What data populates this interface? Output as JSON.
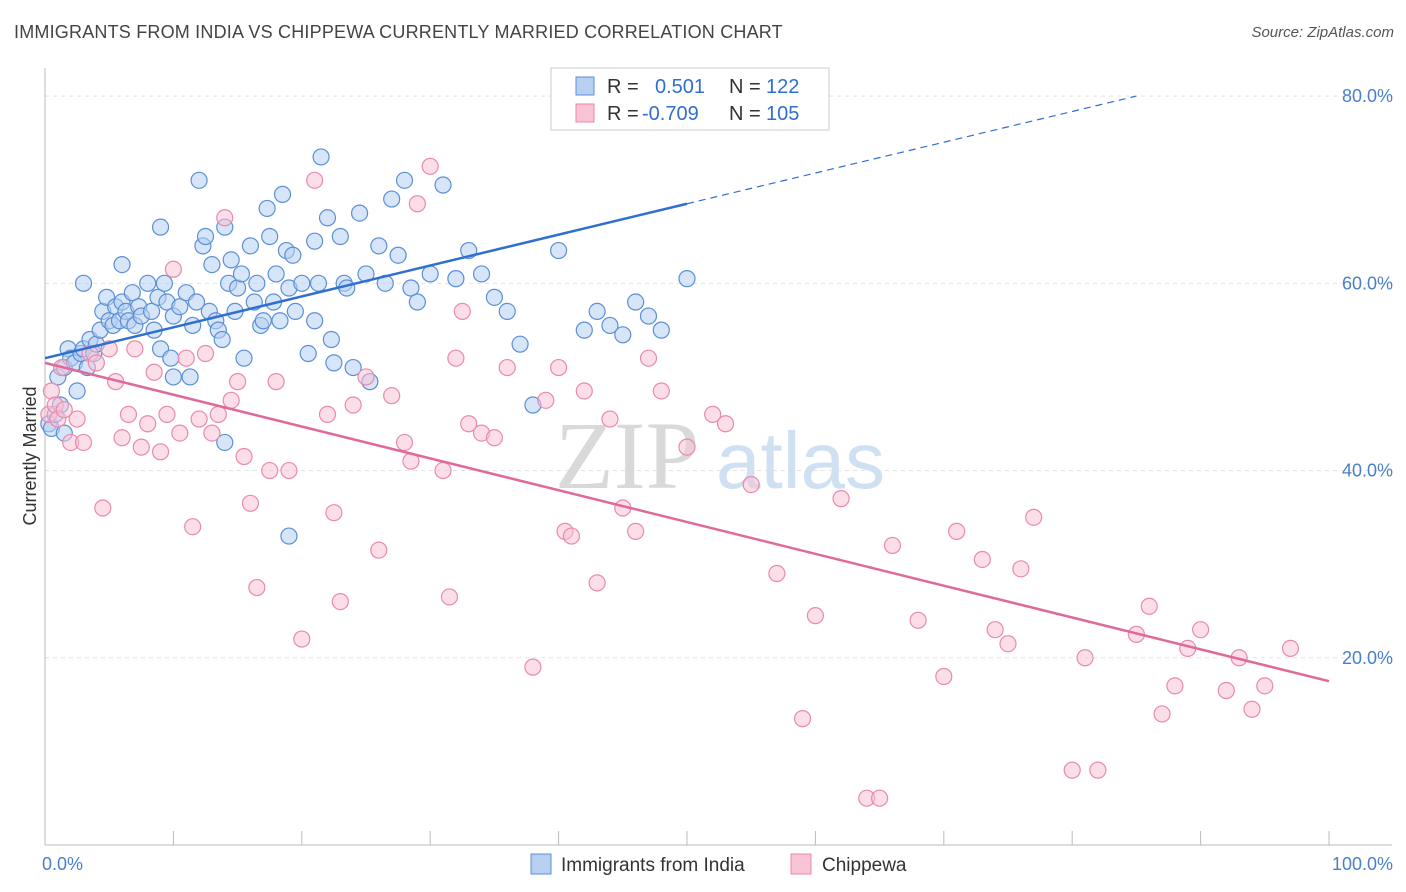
{
  "title": "IMMIGRANTS FROM INDIA VS CHIPPEWA CURRENTLY MARRIED CORRELATION CHART",
  "source": "Source: ZipAtlas.com",
  "watermark": {
    "zip": "ZIP",
    "atlas": "atlas"
  },
  "colors": {
    "blue_fill": "#b7d0f2",
    "blue_stroke": "#5b8fd6",
    "blue_line": "#2f6fcf",
    "pink_fill": "#f7c3d5",
    "pink_stroke": "#e98aab",
    "pink_line": "#e0699a",
    "tick_text": "#4a7fc9",
    "grid": "#e3e3e3"
  },
  "legend": {
    "rows": [
      {
        "r_label": "R =",
        "r_value": "0.501",
        "n_label": "N =",
        "n_value": "122"
      },
      {
        "r_label": "R =",
        "r_value": "-0.709",
        "n_label": "N =",
        "n_value": "105"
      }
    ],
    "bottom": [
      "Immigrants from India",
      "Chippewa"
    ]
  },
  "chart_data": {
    "type": "scatter",
    "title": "IMMIGRANTS FROM INDIA VS CHIPPEWA CURRENTLY MARRIED CORRELATION CHART",
    "xlabel": "",
    "ylabel": "Currently Married",
    "xlim": [
      0,
      100
    ],
    "ylim": [
      0,
      83
    ],
    "x_tick_labels": [
      "0.0%",
      "100.0%"
    ],
    "y_ticks": [
      20,
      40,
      60,
      80
    ],
    "y_tick_labels": [
      "20.0%",
      "40.0%",
      "60.0%",
      "80.0%"
    ],
    "grid": true,
    "legend_position": "top-center",
    "series": [
      {
        "name": "Immigrants from India",
        "r": 0.501,
        "n": 122,
        "trend": {
          "x_start": 0,
          "y_start": 52.0,
          "x_end": 50,
          "y_end": 68.5,
          "dashed_to_x": 85,
          "dashed_to_y": 80.0
        },
        "points": [
          [
            0.3,
            45.0
          ],
          [
            0.5,
            44.5
          ],
          [
            0.8,
            46.0
          ],
          [
            1.0,
            50.0
          ],
          [
            1.2,
            47.0
          ],
          [
            1.5,
            51.0
          ],
          [
            1.8,
            53.0
          ],
          [
            2.0,
            52.0
          ],
          [
            2.3,
            51.5
          ],
          [
            2.5,
            48.5
          ],
          [
            2.8,
            52.5
          ],
          [
            3.0,
            53.0
          ],
          [
            3.3,
            51.0
          ],
          [
            3.5,
            54.0
          ],
          [
            3.8,
            52.5
          ],
          [
            4.0,
            53.5
          ],
          [
            4.3,
            55.0
          ],
          [
            4.5,
            57.0
          ],
          [
            4.8,
            58.5
          ],
          [
            5.0,
            56.0
          ],
          [
            5.3,
            55.5
          ],
          [
            5.5,
            57.5
          ],
          [
            5.8,
            56.0
          ],
          [
            6.0,
            58.0
          ],
          [
            6.3,
            57.0
          ],
          [
            6.5,
            56.0
          ],
          [
            6.8,
            59.0
          ],
          [
            7.0,
            55.5
          ],
          [
            7.3,
            57.5
          ],
          [
            7.5,
            56.5
          ],
          [
            8.0,
            60.0
          ],
          [
            8.3,
            57.0
          ],
          [
            8.5,
            55.0
          ],
          [
            8.8,
            58.5
          ],
          [
            9.0,
            53.0
          ],
          [
            9.3,
            60.0
          ],
          [
            9.5,
            58.0
          ],
          [
            9.8,
            52.0
          ],
          [
            10.0,
            56.5
          ],
          [
            10.5,
            57.5
          ],
          [
            11.0,
            59.0
          ],
          [
            11.3,
            50.0
          ],
          [
            11.5,
            55.5
          ],
          [
            11.8,
            58.0
          ],
          [
            12.0,
            71.0
          ],
          [
            12.3,
            64.0
          ],
          [
            12.5,
            65.0
          ],
          [
            12.8,
            57.0
          ],
          [
            13.0,
            62.0
          ],
          [
            13.3,
            56.0
          ],
          [
            13.5,
            55.0
          ],
          [
            13.8,
            54.0
          ],
          [
            14.0,
            66.0
          ],
          [
            14.3,
            60.0
          ],
          [
            14.5,
            62.5
          ],
          [
            14.8,
            57.0
          ],
          [
            15.0,
            59.5
          ],
          [
            15.3,
            61.0
          ],
          [
            15.5,
            52.0
          ],
          [
            16.0,
            64.0
          ],
          [
            16.3,
            58.0
          ],
          [
            16.5,
            60.0
          ],
          [
            16.8,
            55.5
          ],
          [
            17.0,
            56.0
          ],
          [
            17.3,
            68.0
          ],
          [
            17.5,
            65.0
          ],
          [
            17.8,
            58.0
          ],
          [
            18.0,
            61.0
          ],
          [
            18.3,
            56.0
          ],
          [
            18.5,
            69.5
          ],
          [
            18.8,
            63.5
          ],
          [
            19.0,
            59.5
          ],
          [
            19.3,
            63.0
          ],
          [
            19.5,
            57.0
          ],
          [
            20.0,
            60.0
          ],
          [
            20.5,
            52.5
          ],
          [
            21.0,
            64.5
          ],
          [
            21.3,
            60.0
          ],
          [
            21.5,
            73.5
          ],
          [
            22.0,
            67.0
          ],
          [
            22.3,
            54.0
          ],
          [
            22.5,
            51.5
          ],
          [
            23.0,
            65.0
          ],
          [
            23.3,
            60.0
          ],
          [
            23.5,
            59.5
          ],
          [
            24.0,
            51.0
          ],
          [
            24.5,
            67.5
          ],
          [
            25.0,
            61.0
          ],
          [
            25.3,
            49.5
          ],
          [
            26.0,
            64.0
          ],
          [
            26.5,
            60.0
          ],
          [
            27.0,
            69.0
          ],
          [
            27.5,
            63.0
          ],
          [
            28.0,
            71.0
          ],
          [
            28.5,
            59.5
          ],
          [
            29.0,
            58.0
          ],
          [
            30.0,
            61.0
          ],
          [
            31.0,
            70.5
          ],
          [
            32.0,
            60.5
          ],
          [
            33.0,
            63.5
          ],
          [
            34.0,
            61.0
          ],
          [
            35.0,
            58.5
          ],
          [
            36.0,
            57.0
          ],
          [
            37.0,
            53.5
          ],
          [
            38.0,
            47.0
          ],
          [
            40.0,
            63.5
          ],
          [
            42.0,
            55.0
          ],
          [
            43.0,
            57.0
          ],
          [
            44.0,
            55.5
          ],
          [
            45.0,
            54.5
          ],
          [
            46.0,
            58.0
          ],
          [
            47.0,
            56.5
          ],
          [
            48.0,
            55.0
          ],
          [
            50.0,
            60.5
          ],
          [
            21.0,
            56.0
          ],
          [
            14.0,
            43.0
          ],
          [
            19.0,
            33.0
          ],
          [
            10.0,
            50.0
          ],
          [
            3.0,
            60.0
          ],
          [
            6.0,
            62.0
          ],
          [
            9.0,
            66.0
          ],
          [
            1.5,
            44.0
          ]
        ]
      },
      {
        "name": "Chippewa",
        "r": -0.709,
        "n": 105,
        "trend": {
          "x_start": 0,
          "y_start": 51.5,
          "x_end": 100,
          "y_end": 17.5
        },
        "points": [
          [
            0.3,
            46.0
          ],
          [
            0.5,
            48.5
          ],
          [
            0.8,
            47.0
          ],
          [
            1.0,
            45.5
          ],
          [
            1.3,
            51.0
          ],
          [
            1.5,
            46.5
          ],
          [
            2.0,
            43.0
          ],
          [
            2.5,
            45.5
          ],
          [
            3.0,
            43.0
          ],
          [
            3.5,
            52.5
          ],
          [
            4.0,
            51.5
          ],
          [
            4.5,
            36.0
          ],
          [
            5.0,
            53.0
          ],
          [
            5.5,
            49.5
          ],
          [
            6.0,
            43.5
          ],
          [
            6.5,
            46.0
          ],
          [
            7.0,
            53.0
          ],
          [
            7.5,
            42.5
          ],
          [
            8.0,
            45.0
          ],
          [
            8.5,
            50.5
          ],
          [
            9.0,
            42.0
          ],
          [
            9.5,
            46.0
          ],
          [
            10.0,
            61.5
          ],
          [
            10.5,
            44.0
          ],
          [
            11.0,
            52.0
          ],
          [
            11.5,
            34.0
          ],
          [
            12.0,
            45.5
          ],
          [
            12.5,
            52.5
          ],
          [
            13.0,
            44.0
          ],
          [
            13.5,
            46.0
          ],
          [
            14.0,
            67.0
          ],
          [
            14.5,
            47.5
          ],
          [
            15.0,
            49.5
          ],
          [
            15.5,
            41.5
          ],
          [
            16.0,
            36.5
          ],
          [
            16.5,
            27.5
          ],
          [
            17.5,
            40.0
          ],
          [
            18.0,
            49.5
          ],
          [
            19.0,
            40.0
          ],
          [
            20.0,
            22.0
          ],
          [
            21.0,
            71.0
          ],
          [
            22.0,
            46.0
          ],
          [
            22.5,
            35.5
          ],
          [
            23.0,
            26.0
          ],
          [
            24.0,
            47.0
          ],
          [
            25.0,
            50.0
          ],
          [
            26.0,
            31.5
          ],
          [
            27.0,
            48.0
          ],
          [
            28.0,
            43.0
          ],
          [
            28.5,
            41.0
          ],
          [
            29.0,
            68.5
          ],
          [
            30.0,
            72.5
          ],
          [
            31.0,
            40.0
          ],
          [
            31.5,
            26.5
          ],
          [
            32.0,
            52.0
          ],
          [
            32.5,
            57.0
          ],
          [
            33.0,
            45.0
          ],
          [
            34.0,
            44.0
          ],
          [
            35.0,
            43.5
          ],
          [
            36.0,
            51.0
          ],
          [
            38.0,
            19.0
          ],
          [
            39.0,
            47.5
          ],
          [
            40.0,
            51.0
          ],
          [
            40.5,
            33.5
          ],
          [
            41.0,
            33.0
          ],
          [
            42.0,
            48.5
          ],
          [
            43.0,
            28.0
          ],
          [
            44.0,
            45.5
          ],
          [
            45.0,
            36.0
          ],
          [
            46.0,
            33.5
          ],
          [
            47.0,
            52.0
          ],
          [
            48.0,
            48.5
          ],
          [
            50.0,
            42.5
          ],
          [
            52.0,
            46.0
          ],
          [
            53.0,
            45.0
          ],
          [
            55.0,
            38.5
          ],
          [
            57.0,
            29.0
          ],
          [
            59.0,
            13.5
          ],
          [
            60.0,
            24.5
          ],
          [
            62.0,
            37.0
          ],
          [
            64.0,
            5.0
          ],
          [
            65.0,
            5.0
          ],
          [
            66.0,
            32.0
          ],
          [
            68.0,
            24.0
          ],
          [
            70.0,
            18.0
          ],
          [
            71.0,
            33.5
          ],
          [
            73.0,
            30.5
          ],
          [
            74.0,
            23.0
          ],
          [
            75.0,
            21.5
          ],
          [
            76.0,
            29.5
          ],
          [
            77.0,
            35.0
          ],
          [
            80.0,
            8.0
          ],
          [
            81.0,
            20.0
          ],
          [
            82.0,
            8.0
          ],
          [
            85.0,
            22.5
          ],
          [
            86.0,
            25.5
          ],
          [
            87.0,
            14.0
          ],
          [
            88.0,
            17.0
          ],
          [
            89.0,
            21.0
          ],
          [
            90.0,
            23.0
          ],
          [
            92.0,
            16.5
          ],
          [
            93.0,
            20.0
          ],
          [
            94.0,
            14.5
          ],
          [
            95.0,
            17.0
          ],
          [
            97.0,
            21.0
          ]
        ]
      }
    ]
  }
}
